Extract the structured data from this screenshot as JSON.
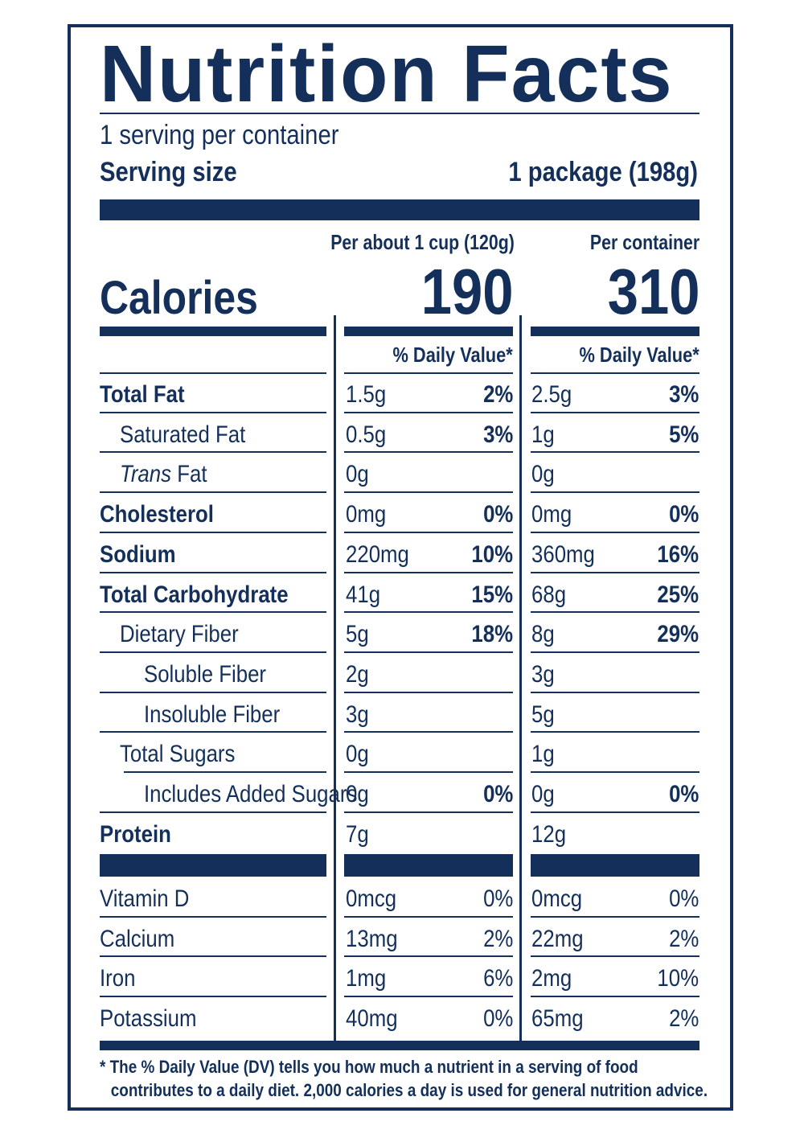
{
  "title": "Nutrition Facts",
  "servings_per_container": "1 serving per container",
  "serving_size_label": "Serving size",
  "serving_size_value": "1 package (198g)",
  "column_headers": {
    "per_cup": "Per about 1 cup (120g)",
    "per_container": "Per container"
  },
  "calories": {
    "label": "Calories",
    "per_cup": "190",
    "per_container": "310"
  },
  "dv_header": "% Daily Value*",
  "nutrients": [
    {
      "name": "Total Fat",
      "cup_amount": "1.5g",
      "cup_dv": "2%",
      "cont_amount": "2.5g",
      "cont_dv": "3%"
    },
    {
      "name": "Saturated Fat",
      "cup_amount": "0.5g",
      "cup_dv": "3%",
      "cont_amount": "1g",
      "cont_dv": "5%"
    },
    {
      "name_italic": "Trans",
      "name_rest": " Fat",
      "cup_amount": "0g",
      "cup_dv": "",
      "cont_amount": "0g",
      "cont_dv": ""
    },
    {
      "name": "Cholesterol",
      "cup_amount": "0mg",
      "cup_dv": "0%",
      "cont_amount": "0mg",
      "cont_dv": "0%"
    },
    {
      "name": "Sodium",
      "cup_amount": "220mg",
      "cup_dv": "10%",
      "cont_amount": "360mg",
      "cont_dv": "16%"
    },
    {
      "name": "Total Carbohydrate",
      "cup_amount": "41g",
      "cup_dv": "15%",
      "cont_amount": "68g",
      "cont_dv": "25%"
    },
    {
      "name": "Dietary Fiber",
      "cup_amount": "5g",
      "cup_dv": "18%",
      "cont_amount": "8g",
      "cont_dv": "29%"
    },
    {
      "name": "Soluble Fiber",
      "cup_amount": "2g",
      "cup_dv": "",
      "cont_amount": "3g",
      "cont_dv": ""
    },
    {
      "name": "Insoluble Fiber",
      "cup_amount": "3g",
      "cup_dv": "",
      "cont_amount": "5g",
      "cont_dv": ""
    },
    {
      "name": "Total Sugars",
      "cup_amount": "0g",
      "cup_dv": "",
      "cont_amount": "1g",
      "cont_dv": ""
    },
    {
      "name": "Includes Added Sugars",
      "cup_amount": "0g",
      "cup_dv": "0%",
      "cont_amount": "0g",
      "cont_dv": "0%"
    },
    {
      "name": "Protein",
      "cup_amount": "7g",
      "cup_dv": "",
      "cont_amount": "12g",
      "cont_dv": ""
    }
  ],
  "vitamins": [
    {
      "name": "Vitamin D",
      "cup_amount": "0mcg",
      "cup_dv": "0%",
      "cont_amount": "0mcg",
      "cont_dv": "0%"
    },
    {
      "name": "Calcium",
      "cup_amount": "13mg",
      "cup_dv": "2%",
      "cont_amount": "22mg",
      "cont_dv": "2%"
    },
    {
      "name": "Iron",
      "cup_amount": "1mg",
      "cup_dv": "6%",
      "cont_amount": "2mg",
      "cont_dv": "10%"
    },
    {
      "name": "Potassium",
      "cup_amount": "40mg",
      "cup_dv": "0%",
      "cont_amount": "65mg",
      "cont_dv": "2%"
    }
  ],
  "footnote_line1": "* The % Daily Value (DV) tells you how much a nutrient in a serving of food",
  "footnote_line2": "contributes to a daily diet. 2,000 calories a day is used for general nutrition advice.",
  "colors": {
    "ink": "#14305a",
    "background": "#ffffff"
  }
}
